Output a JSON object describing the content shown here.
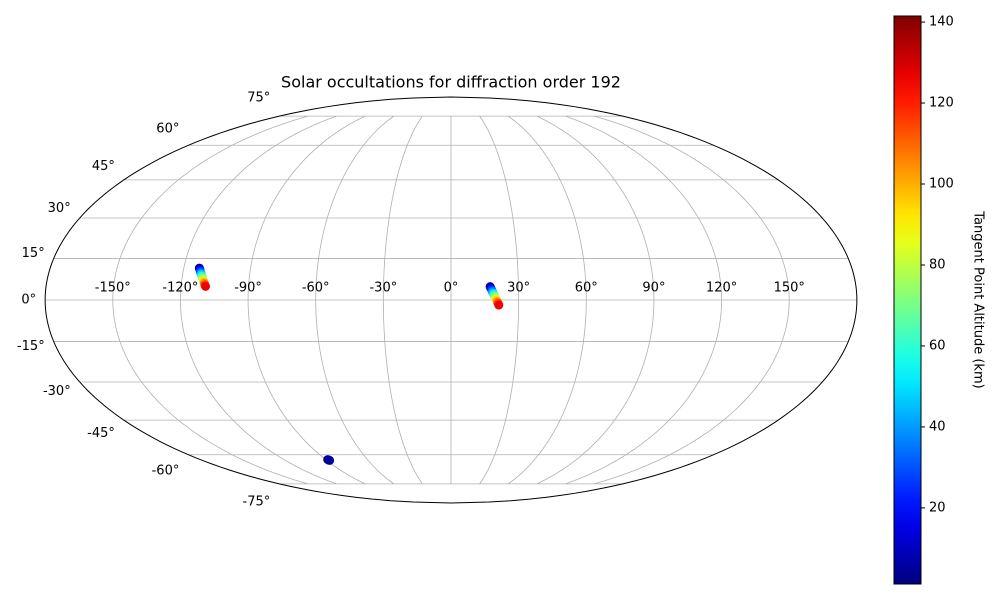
{
  "chart_data": {
    "type": "scatter",
    "projection": "mollweide",
    "title": "Solar occultations for diffraction order 192",
    "x": [
      -113.0,
      -112.6,
      -112.3,
      -111.9,
      -111.6,
      -111.2,
      -110.9,
      -110.5,
      -110.2,
      -109.8,
      -109.5,
      -109.1,
      17.4,
      17.7,
      18.1,
      18.4,
      18.8,
      19.1,
      19.5,
      19.8,
      20.2,
      20.5,
      20.9,
      21.2,
      -88.5,
      -88.2,
      -87.9
    ],
    "y": [
      11.5,
      10.9,
      10.3,
      9.7,
      9.1,
      8.5,
      7.9,
      7.3,
      6.7,
      6.1,
      5.5,
      4.9,
      4.8,
      4.2,
      3.6,
      3.0,
      2.4,
      1.8,
      1.2,
      0.6,
      0.0,
      -0.6,
      -1.2,
      -1.8,
      -62.3,
      -62.5,
      -62.7
    ],
    "color_values": [
      5,
      16,
      27,
      38,
      49,
      60,
      71,
      82,
      93,
      104,
      115,
      126,
      5,
      16,
      27,
      38,
      49,
      60,
      71,
      82,
      93,
      104,
      115,
      126,
      3,
      4,
      5
    ],
    "xlim": [
      -180,
      180
    ],
    "ylim": [
      -90,
      90
    ],
    "xticks": [
      {
        "value": -150,
        "label": "-150°"
      },
      {
        "value": -120,
        "label": "-120°"
      },
      {
        "value": -90,
        "label": "-90°"
      },
      {
        "value": -60,
        "label": "-60°"
      },
      {
        "value": -30,
        "label": "-30°"
      },
      {
        "value": 0,
        "label": "0°"
      },
      {
        "value": 30,
        "label": "30°"
      },
      {
        "value": 60,
        "label": "60°"
      },
      {
        "value": 90,
        "label": "90°"
      },
      {
        "value": 120,
        "label": "120°"
      },
      {
        "value": 150,
        "label": "150°"
      }
    ],
    "yticks": [
      {
        "value": -75,
        "label": "-75°"
      },
      {
        "value": -60,
        "label": "-60°"
      },
      {
        "value": -45,
        "label": "-45°"
      },
      {
        "value": -30,
        "label": "-30°"
      },
      {
        "value": -15,
        "label": "-15°"
      },
      {
        "value": 0,
        "label": "0°"
      },
      {
        "value": 15,
        "label": "15°"
      },
      {
        "value": 30,
        "label": "30°"
      },
      {
        "value": 45,
        "label": "45°"
      },
      {
        "value": 60,
        "label": "60°"
      },
      {
        "value": 75,
        "label": "75°"
      }
    ],
    "grid": true,
    "colorbar": {
      "label": "Tangent Point Altitude (km)",
      "colormap": "jet",
      "lim": [
        1.2,
        141.5
      ],
      "ticks": [
        20,
        40,
        60,
        80,
        100,
        120,
        140
      ]
    }
  }
}
